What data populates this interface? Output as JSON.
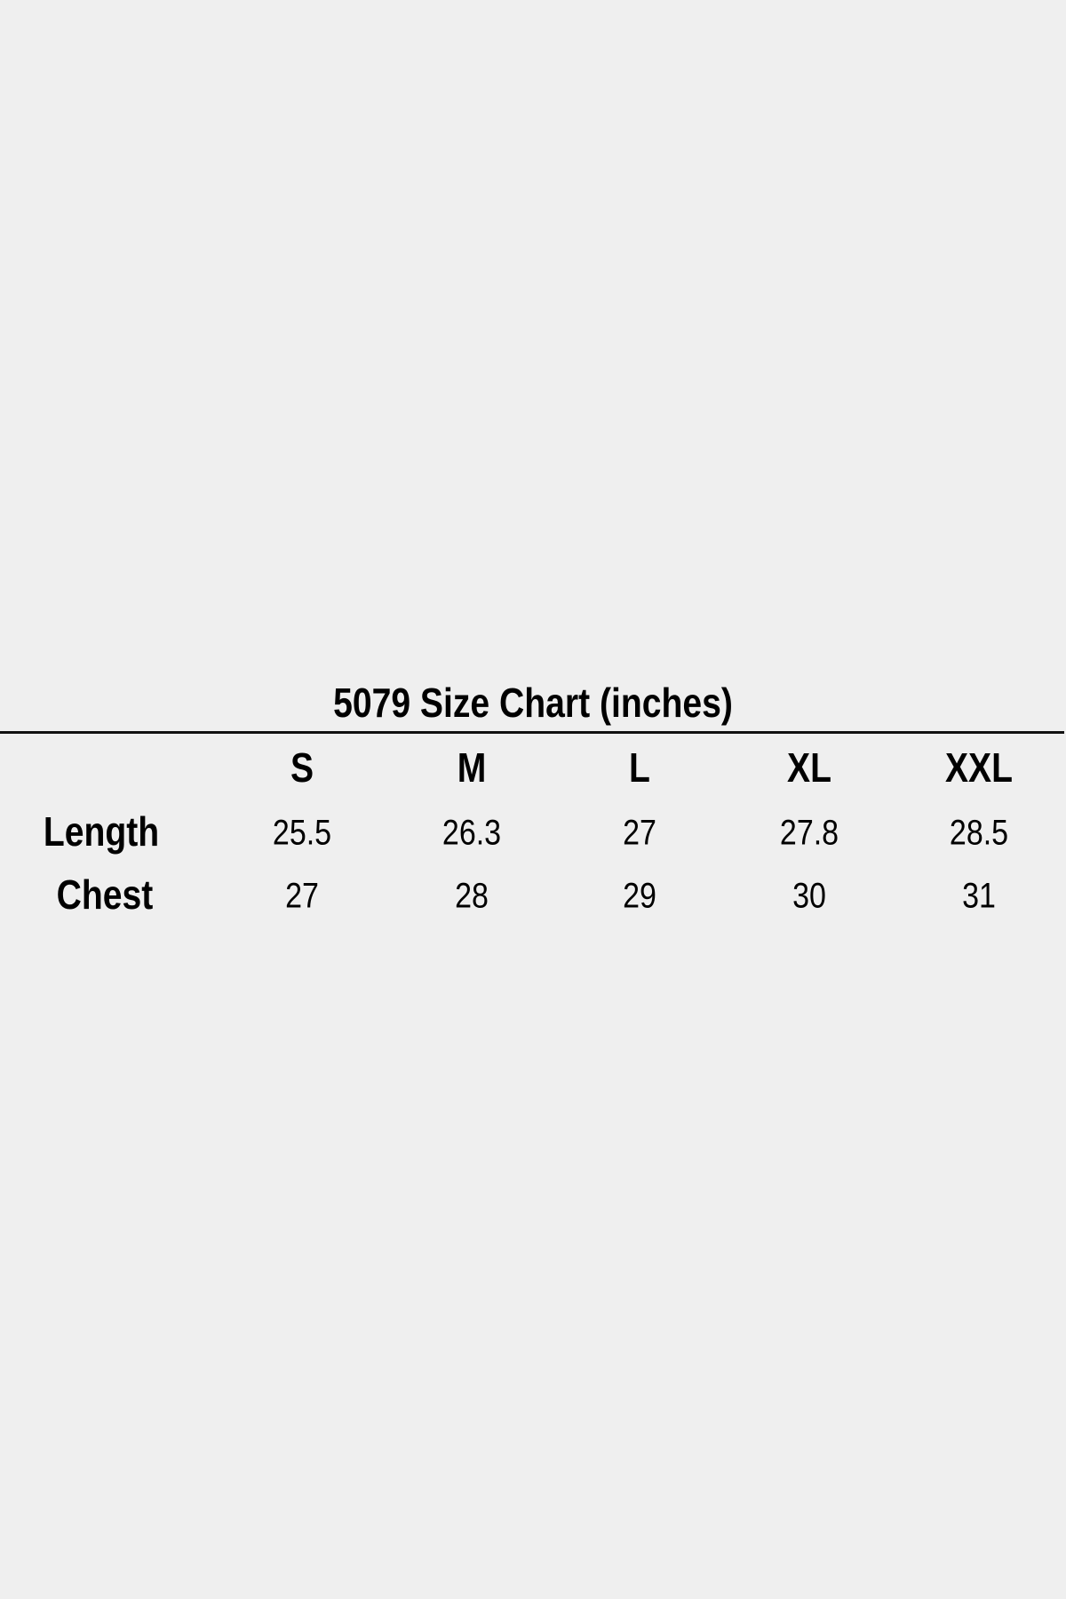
{
  "title": "5079 Size Chart (inches)",
  "sizes": [
    "S",
    "M",
    "L",
    "XL",
    "XXL"
  ],
  "rows": [
    {
      "label": "Length",
      "values": [
        "25.5",
        "26.3",
        "27",
        "27.8",
        "28.5"
      ]
    },
    {
      "label": "Chest",
      "values": [
        "27",
        "28",
        "29",
        "30",
        "31"
      ]
    }
  ]
}
